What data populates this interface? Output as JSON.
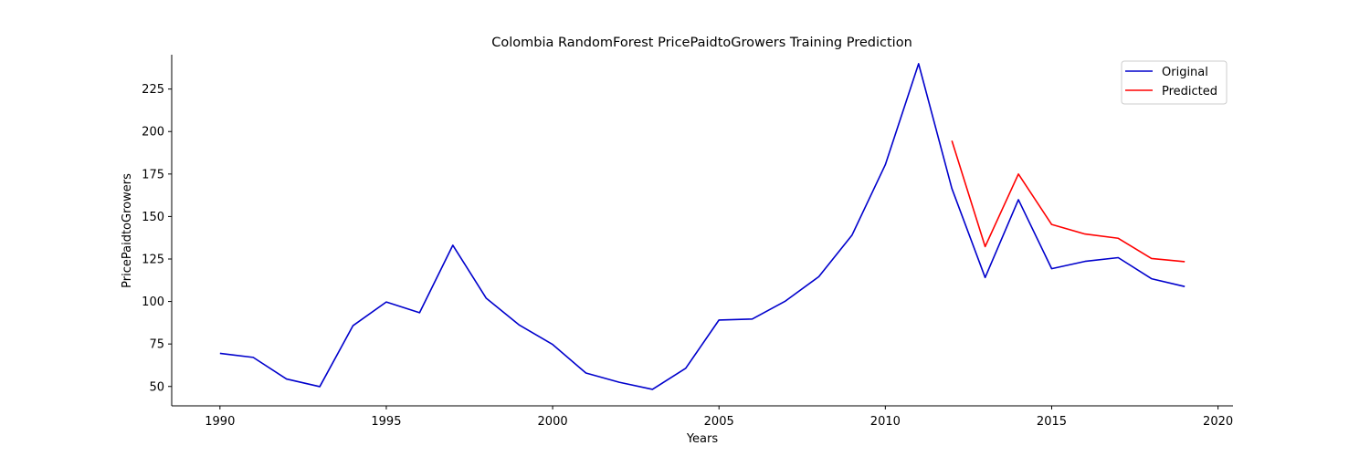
{
  "chart_data": {
    "type": "line",
    "title": "Colombia RandomForest PricePaidtoGrowers Training Prediction",
    "xlabel": "Years",
    "ylabel": "PricePaidtoGrowers",
    "xlim": [
      1988.55,
      2020.45
    ],
    "ylim": [
      38.6,
      245.2
    ],
    "xticks": [
      1990,
      1995,
      2000,
      2005,
      2010,
      2015,
      2020
    ],
    "yticks": [
      50,
      75,
      100,
      125,
      150,
      175,
      200,
      225
    ],
    "grid": false,
    "legend": "top-right",
    "series": [
      {
        "name": "Original",
        "color": "#0000cc",
        "x": [
          1990,
          1991,
          1992,
          1993,
          1994,
          1995,
          1996,
          1997,
          1998,
          1999,
          2000,
          2001,
          2002,
          2003,
          2004,
          2005,
          2006,
          2007,
          2008,
          2009,
          2010,
          2011,
          2012,
          2013,
          2014,
          2015,
          2016,
          2017,
          2018,
          2019
        ],
        "values": [
          69.5,
          67.1,
          54.4,
          49.9,
          85.8,
          99.7,
          93.4,
          133.1,
          102.0,
          86.1,
          74.7,
          57.9,
          52.5,
          48.3,
          60.7,
          89.1,
          89.7,
          100.3,
          114.6,
          139.1,
          180.5,
          239.9,
          166.5,
          114.1,
          159.9,
          119.3,
          123.6,
          125.8,
          113.4,
          108.8
        ]
      },
      {
        "name": "Predicted",
        "color": "#ff0000",
        "x": [
          2012,
          2013,
          2014,
          2015,
          2016,
          2017,
          2018,
          2019
        ],
        "values": [
          194.6,
          132.3,
          175.0,
          145.3,
          139.7,
          137.2,
          125.3,
          123.4
        ]
      }
    ]
  }
}
